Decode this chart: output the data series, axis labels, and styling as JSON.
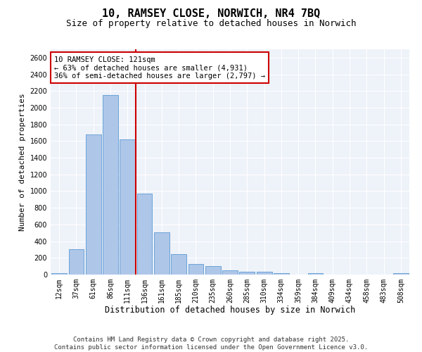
{
  "title": "10, RAMSEY CLOSE, NORWICH, NR4 7BQ",
  "subtitle": "Size of property relative to detached houses in Norwich",
  "xlabel": "Distribution of detached houses by size in Norwich",
  "ylabel": "Number of detached properties",
  "categories": [
    "12sqm",
    "37sqm",
    "61sqm",
    "86sqm",
    "111sqm",
    "136sqm",
    "161sqm",
    "185sqm",
    "210sqm",
    "235sqm",
    "260sqm",
    "285sqm",
    "310sqm",
    "334sqm",
    "359sqm",
    "384sqm",
    "409sqm",
    "434sqm",
    "458sqm",
    "483sqm",
    "508sqm"
  ],
  "values": [
    20,
    300,
    1680,
    2150,
    1620,
    970,
    505,
    245,
    125,
    100,
    50,
    30,
    30,
    20,
    0,
    20,
    0,
    0,
    0,
    0,
    20
  ],
  "bar_color": "#aec6e8",
  "bar_edge_color": "#5b9bd5",
  "property_line_color": "#cc0000",
  "annotation_text": "10 RAMSEY CLOSE: 121sqm\n← 63% of detached houses are smaller (4,931)\n36% of semi-detached houses are larger (2,797) →",
  "annotation_box_color": "#ffffff",
  "annotation_box_edge_color": "#cc0000",
  "ylim": [
    0,
    2700
  ],
  "yticks": [
    0,
    200,
    400,
    600,
    800,
    1000,
    1200,
    1400,
    1600,
    1800,
    2000,
    2200,
    2400,
    2600
  ],
  "background_color": "#eef2f9",
  "footer_line1": "Contains HM Land Registry data © Crown copyright and database right 2025.",
  "footer_line2": "Contains public sector information licensed under the Open Government Licence v3.0.",
  "title_fontsize": 11,
  "subtitle_fontsize": 9,
  "xlabel_fontsize": 8.5,
  "ylabel_fontsize": 8,
  "tick_fontsize": 7,
  "annotation_fontsize": 7.5,
  "footer_fontsize": 6.5
}
